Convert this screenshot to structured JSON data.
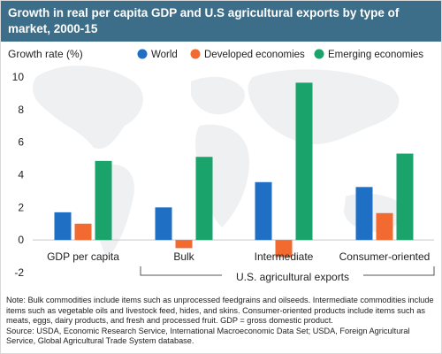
{
  "title": "Growth in real per capita GDP and U.S agricultural exports by type of market, 2000-15",
  "chart_data": {
    "type": "bar",
    "ylabel": "Growth rate (%)",
    "ylim": [
      -2,
      10
    ],
    "yticks": [
      -2,
      0,
      2,
      4,
      6,
      8,
      10
    ],
    "categories": [
      "GDP per capita",
      "Bulk",
      "Intermediate",
      "Consumer-oriented"
    ],
    "group_label": "U.S. agricultural exports",
    "legend_position": "top",
    "grid": false,
    "series": [
      {
        "name": "World",
        "color": "#1f6fc5",
        "values": [
          1.7,
          2.0,
          3.55,
          3.25
        ]
      },
      {
        "name": "Developed economies",
        "color": "#f26a30",
        "values": [
          1.0,
          -0.5,
          -1.05,
          1.65
        ]
      },
      {
        "name": "Emerging economies",
        "color": "#1aa46c",
        "values": [
          4.85,
          5.1,
          9.65,
          5.3
        ]
      }
    ]
  },
  "note": "Note: Bulk commodities include items such as unprocessed feedgrains and oilseeds. Intermediate commodities include items such as vegetable oils and livestock feed, hides, and skins. Consumer-oriented products include items such as meats, eggs, dairy products, and fresh and processed fruit. GDP = gross domestic product.",
  "source": "Source: USDA, Economic Research Service, International Macroeconomic Data Set; USDA, Foreign Agricultural Service, Global Agricultural Trade System database."
}
